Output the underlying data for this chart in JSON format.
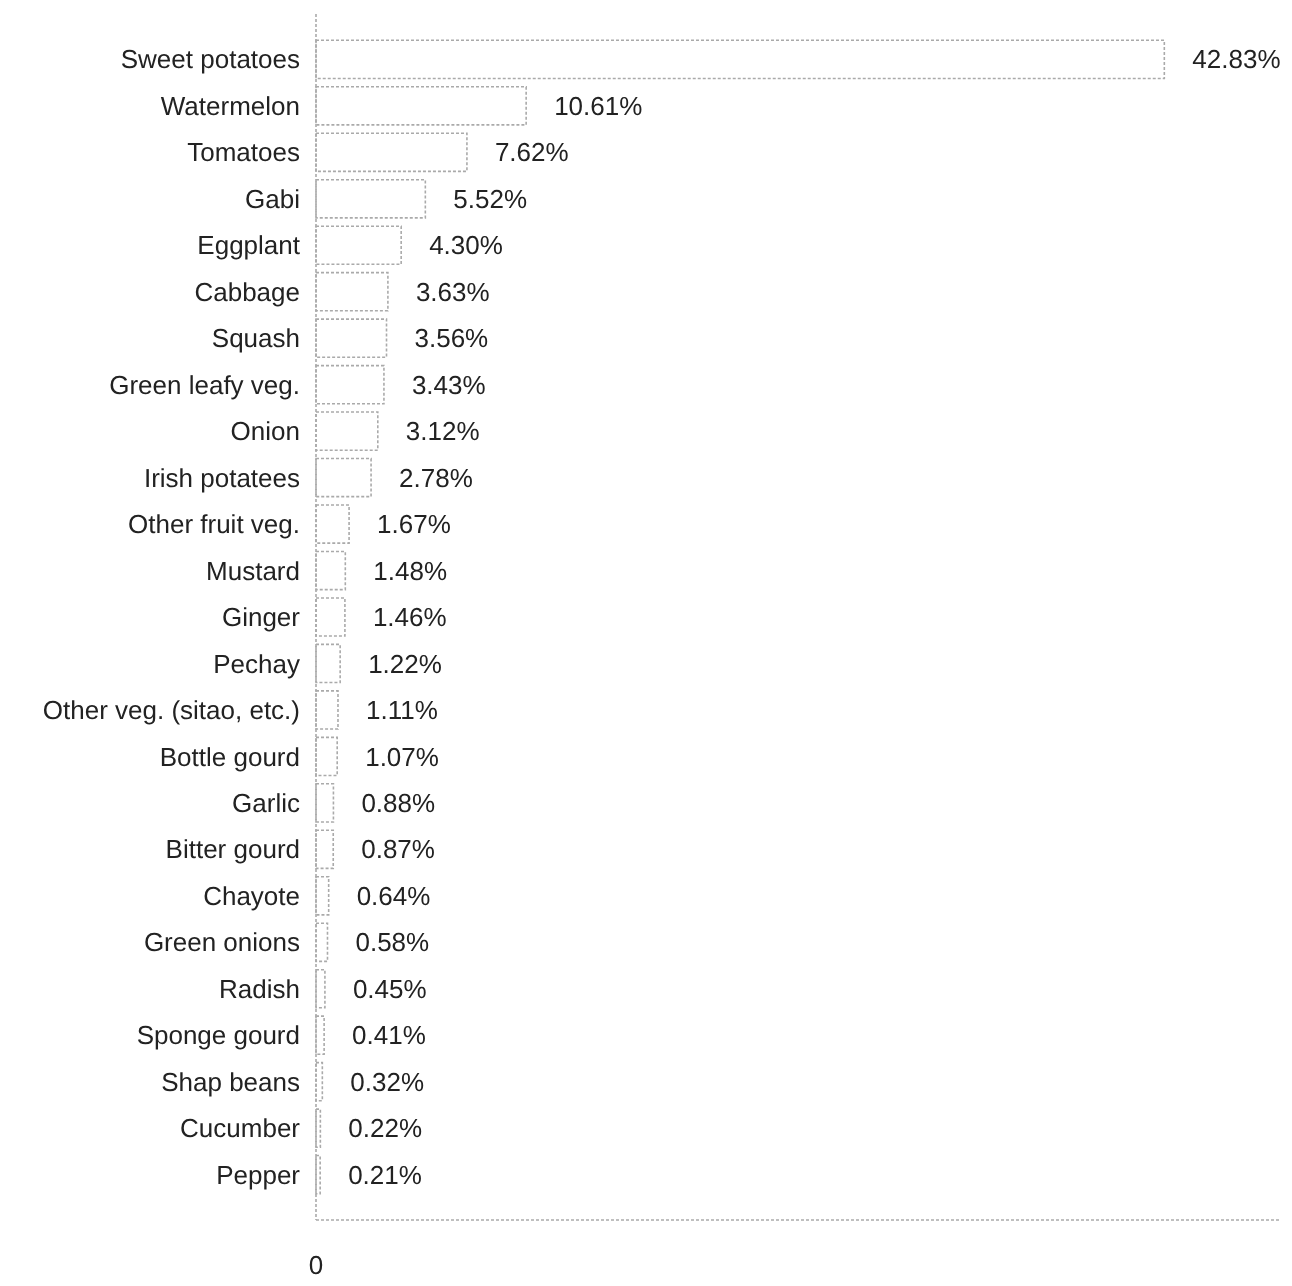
{
  "chart_data": {
    "type": "bar",
    "orientation": "horizontal",
    "categories": [
      "Sweet potatoes",
      "Watermelon",
      "Tomatoes",
      "Gabi",
      "Eggplant",
      "Cabbage",
      "Squash",
      "Green leafy veg.",
      "Onion",
      "Irish potatees",
      "Other fruit veg.",
      "Mustard",
      "Ginger",
      "Pechay",
      "Other veg. (sitao, etc.)",
      "Bottle gourd",
      "Garlic",
      "Bitter gourd",
      "Chayote",
      "Green onions",
      "Radish",
      "Sponge gourd",
      "Shap beans",
      "Cucumber",
      "Pepper"
    ],
    "values": [
      42.83,
      10.61,
      7.62,
      5.52,
      4.3,
      3.63,
      3.56,
      3.43,
      3.12,
      2.78,
      1.67,
      1.48,
      1.46,
      1.22,
      1.11,
      1.07,
      0.88,
      0.87,
      0.64,
      0.58,
      0.45,
      0.41,
      0.32,
      0.22,
      0.21
    ],
    "value_labels": [
      "42.83%",
      "10.61%",
      "7.62%",
      "5.52%",
      "4.30%",
      "3.63%",
      "3.56%",
      "3.43%",
      "3.12%",
      "2.78%",
      "1.67%",
      "1.48%",
      "1.46%",
      "1.22%",
      "1.11%",
      "1.07%",
      "0.88%",
      "0.87%",
      "0.64%",
      "0.58%",
      "0.45%",
      "0.41%",
      "0.32%",
      "0.22%",
      "0.21%"
    ],
    "color": "#ffffff",
    "annotations": [
      "0"
    ]
  }
}
